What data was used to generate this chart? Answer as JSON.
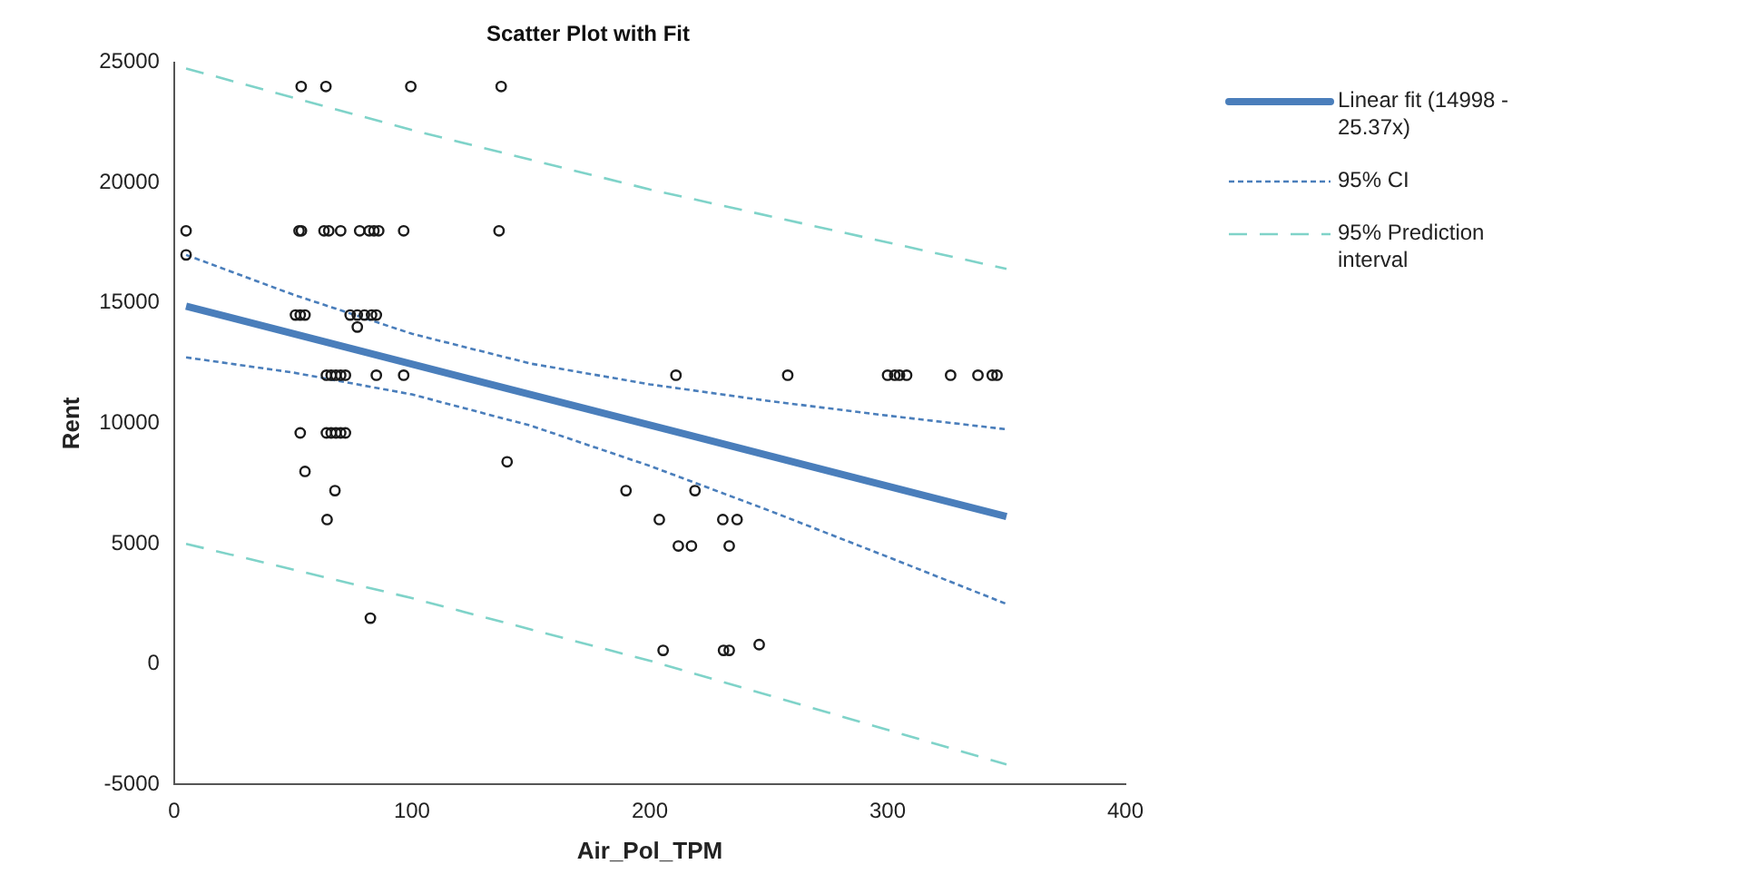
{
  "chart_data": {
    "type": "scatter",
    "title": "Scatter Plot with Fit",
    "xlabel": "Air_Pol_TPM",
    "ylabel": "Rent",
    "xlim": [
      0,
      400
    ],
    "xticks": [
      0,
      100,
      200,
      300,
      400
    ],
    "ylim": [
      -5000,
      25000
    ],
    "yticks": [
      -5000,
      0,
      5000,
      10000,
      15000,
      20000,
      25000
    ],
    "grid": false,
    "legend": "right",
    "series": [
      {
        "type": "scatter",
        "marker": "circle",
        "color": "#1a1a1a",
        "x": [
          53.4,
          63.8,
          99.5,
          137.5,
          5,
          52.5,
          53.5,
          63,
          65,
          70,
          78,
          82,
          84,
          86,
          96.5,
          136.6,
          5,
          51,
          53,
          55,
          74,
          77,
          80,
          83,
          85,
          77,
          64,
          66,
          68,
          70,
          72,
          85,
          96.5,
          211,
          258,
          300,
          303,
          305,
          308,
          326.5,
          338,
          344,
          346,
          53,
          64,
          66,
          68,
          70,
          72,
          55,
          140,
          67.6,
          190,
          219,
          64.3,
          204,
          230.7,
          236.7,
          212,
          217.5,
          233.4,
          205.6,
          231,
          233.4,
          246,
          82.5
        ],
        "values": [
          24000,
          24000,
          24000,
          24000,
          18000,
          18000,
          18000,
          18000,
          18000,
          18000,
          18000,
          18000,
          18000,
          18000,
          18000,
          18000,
          17000,
          14500,
          14500,
          14500,
          14500,
          14500,
          14500,
          14500,
          14500,
          14000,
          12000,
          12000,
          12000,
          12000,
          12000,
          12000,
          12000,
          12000,
          12000,
          12000,
          12000,
          12000,
          12000,
          12000,
          12000,
          12000,
          12000,
          9600,
          9600,
          9600,
          9600,
          9600,
          9600,
          8000,
          8400,
          7200,
          7200,
          7200,
          6000,
          6000,
          6000,
          6000,
          4900,
          4900,
          4900,
          560,
          560,
          560,
          800,
          1900
        ]
      },
      {
        "type": "line",
        "name": "Linear fit (14998  - 25.37x)",
        "color": "#4a7ebb",
        "line_style": "solid",
        "marker": "none",
        "x": [
          5,
          350
        ],
        "values": [
          14870,
          6120
        ]
      },
      {
        "type": "line",
        "name": "95% CI",
        "color": "#4a7ebb",
        "line_style": "dotted",
        "marker": "none",
        "x": [
          5,
          50,
          100,
          150,
          200,
          250,
          300,
          350
        ],
        "values": [
          17000,
          15350,
          13720,
          12480,
          11620,
          10930,
          10320,
          9750
        ]
      },
      {
        "type": "line",
        "color": "#4a7ebb",
        "line_style": "dotted",
        "marker": "none",
        "x": [
          5,
          50,
          100,
          150,
          200,
          250,
          300,
          350
        ],
        "values": [
          12740,
          12110,
          11200,
          9900,
          8230,
          6380,
          4450,
          2490
        ]
      },
      {
        "type": "line",
        "name": "95% Prediction interval",
        "color": "#7fd3c9",
        "line_style": "dashed",
        "marker": "none",
        "x": [
          5,
          100,
          200,
          350
        ],
        "values": [
          24750,
          22190,
          19720,
          16420
        ]
      },
      {
        "type": "line",
        "color": "#7fd3c9",
        "line_style": "dashed",
        "marker": "none",
        "x": [
          5,
          100,
          200,
          350
        ],
        "values": [
          4990,
          2730,
          130,
          -4180
        ]
      }
    ]
  }
}
